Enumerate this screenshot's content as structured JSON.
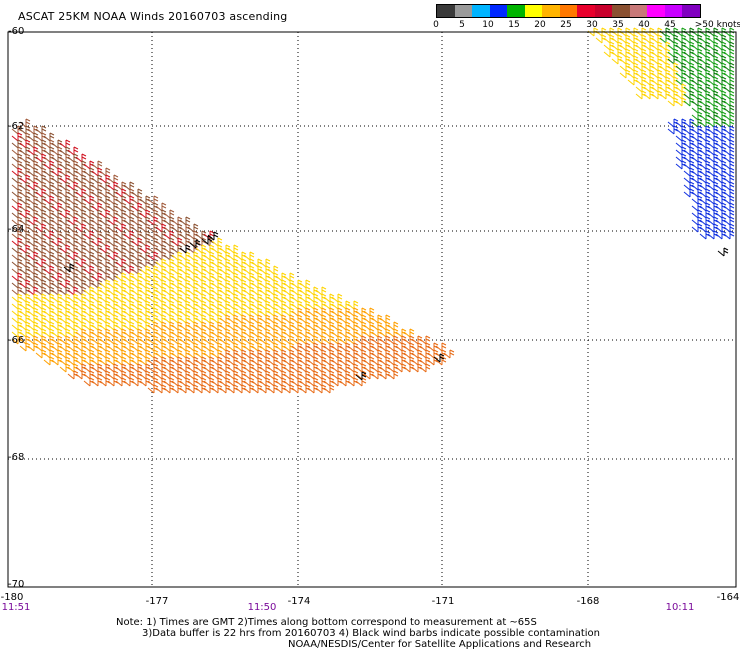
{
  "title": "ASCAT 25KM NOAA Winds 20160703 ascending",
  "legend": {
    "colors": [
      "#3a3a3a",
      "#9a9a9a",
      "#00b4ff",
      "#0028ff",
      "#00b400",
      "#ffff00",
      "#ffb400",
      "#ff7800",
      "#e8002c",
      "#c8002c",
      "#8a5030",
      "#c87878",
      "#ff00ff",
      "#c800ff",
      "#8000c0"
    ],
    "labels": [
      "0",
      "5",
      "10",
      "15",
      "20",
      "25",
      "30",
      "35",
      "40",
      "45",
      ">50 knots"
    ]
  },
  "map": {
    "lon_range": [
      -180,
      -164
    ],
    "lat_range": [
      -70,
      -60
    ],
    "lon_ticks": [
      "-180",
      "-177",
      "-174",
      "-171",
      "-168",
      "-164"
    ],
    "lat_ticks": [
      "-60",
      "-62",
      "-64",
      "-66",
      "-68",
      "-70"
    ],
    "time_labels": [
      "11:51",
      "11:50",
      "10:11"
    ]
  },
  "notes": {
    "line1": "Note: 1) Times are GMT 2)Times along bottom correspond to measurement at ~65S",
    "line2": "3)Data buffer is 22 hrs from 20160703 4) Black wind barbs indicate possible contamination",
    "line3": "NOAA/NESDIS/Center for Satellite Applications and Research"
  }
}
